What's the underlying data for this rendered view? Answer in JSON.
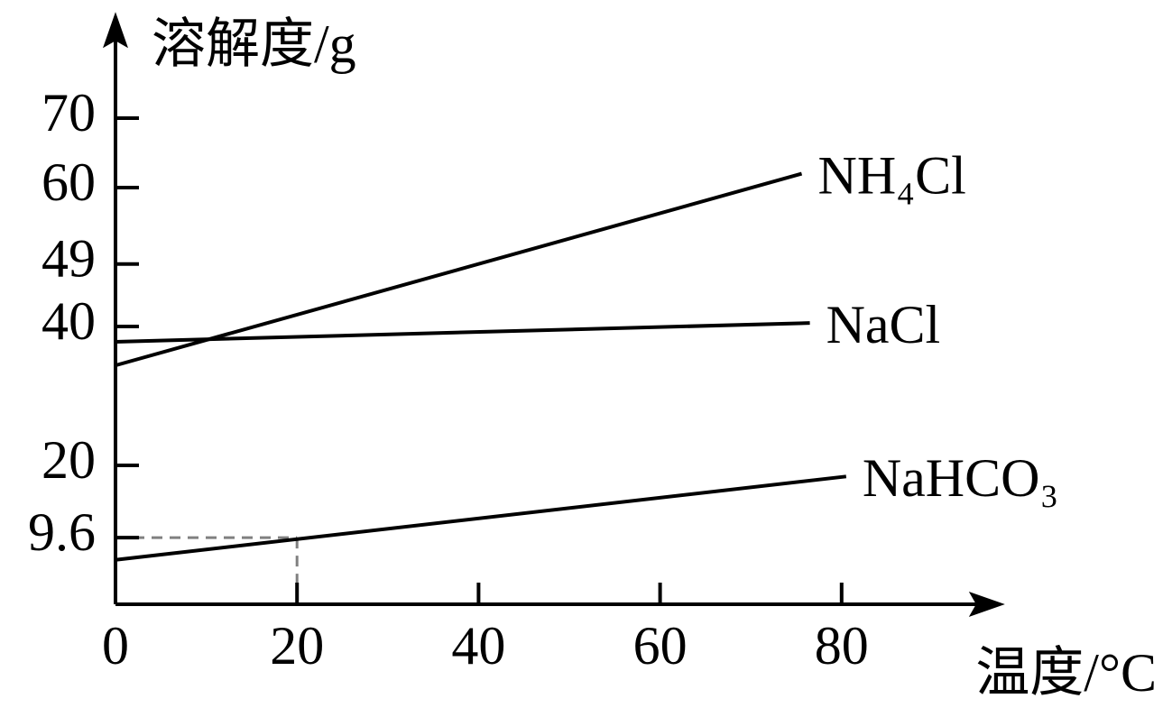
{
  "chart_data": {
    "type": "line",
    "y_label": "溶解度/g",
    "x_label": "温度/°C",
    "xlim": [
      0,
      97
    ],
    "ylim": [
      0,
      84
    ],
    "xticks": [
      0,
      20,
      40,
      60,
      80
    ],
    "yticks": [
      70,
      60,
      49,
      40,
      20,
      9.6
    ],
    "series": [
      {
        "name": "NH₄Cl",
        "color": "#000000",
        "x": [
          0,
          75.6
        ],
        "values": [
          34.4,
          62
        ]
      },
      {
        "name": "NaCl",
        "color": "#000000",
        "x": [
          0,
          76.5
        ],
        "values": [
          37.8,
          40.5
        ]
      },
      {
        "name": "NaHCO₃",
        "color": "#000000",
        "x": [
          0,
          80.5
        ],
        "values": [
          6.4,
          18.4
        ]
      }
    ],
    "guide": {
      "x": 20,
      "y": 9.6,
      "color": "#808080"
    }
  }
}
